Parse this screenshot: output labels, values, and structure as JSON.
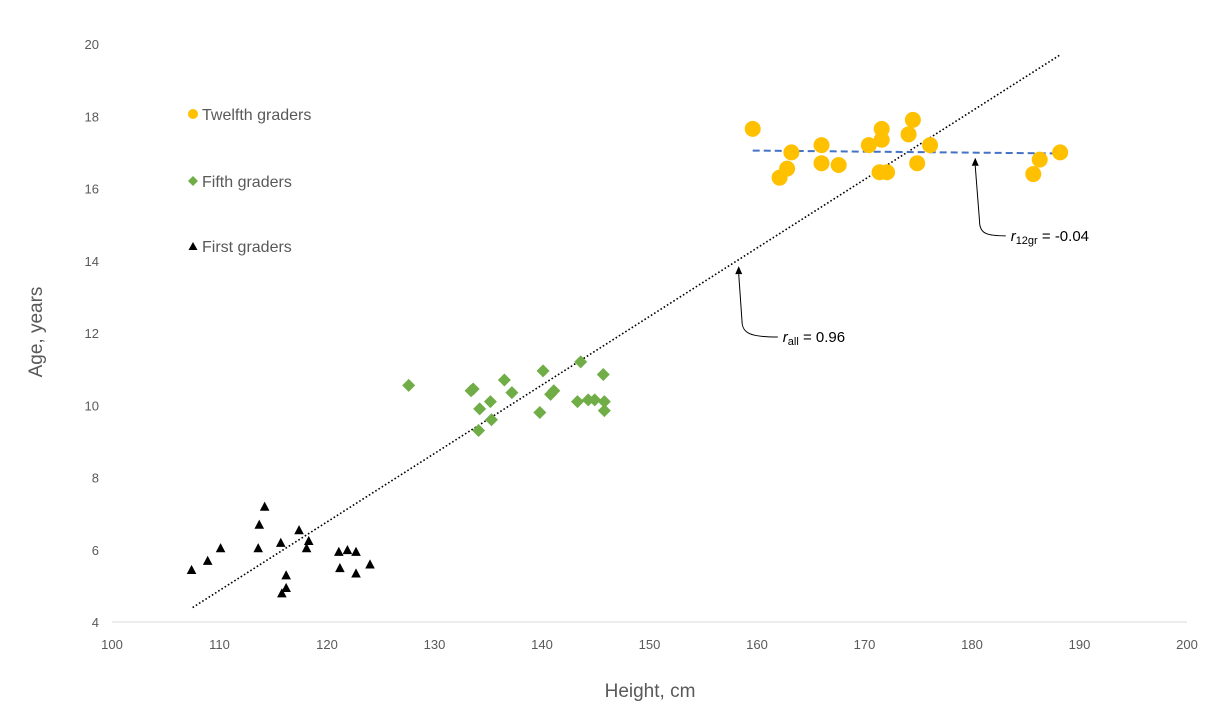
{
  "chart_data": {
    "type": "scatter",
    "title": "",
    "xlabel": "Height, cm",
    "ylabel": "Age, years",
    "xlim": [
      100,
      200
    ],
    "ylim": [
      4,
      20
    ],
    "xticks": [
      100,
      110,
      120,
      130,
      140,
      150,
      160,
      170,
      180,
      190,
      200
    ],
    "yticks": [
      4,
      6,
      8,
      10,
      12,
      14,
      16,
      18,
      20
    ],
    "grid": false,
    "legend_position": "top-left",
    "colors": {
      "twelfth": "#FFC000",
      "fifth": "#70AD47",
      "first": "#000000",
      "overall_trend": "#000000",
      "twelfth_trend": "#4472C4",
      "axis": "#D9D9D9"
    },
    "series": [
      {
        "name": "Twelfth graders",
        "marker": "circle",
        "points": [
          [
            159.6,
            17.65
          ],
          [
            162.1,
            16.3
          ],
          [
            162.8,
            16.55
          ],
          [
            163.2,
            17.0
          ],
          [
            166.0,
            17.2
          ],
          [
            166.0,
            16.7
          ],
          [
            167.6,
            16.65
          ],
          [
            170.4,
            17.2
          ],
          [
            171.4,
            16.45
          ],
          [
            171.6,
            17.65
          ],
          [
            171.6,
            17.35
          ],
          [
            172.1,
            16.45
          ],
          [
            174.1,
            17.5
          ],
          [
            174.5,
            17.9
          ],
          [
            174.9,
            16.7
          ],
          [
            176.1,
            17.2
          ],
          [
            185.7,
            16.4
          ],
          [
            186.3,
            16.8
          ],
          [
            188.2,
            17.0
          ]
        ]
      },
      {
        "name": "Fifth graders",
        "marker": "diamond",
        "points": [
          [
            127.6,
            10.55
          ],
          [
            133.4,
            10.4
          ],
          [
            133.6,
            10.45
          ],
          [
            134.1,
            9.3
          ],
          [
            134.2,
            9.9
          ],
          [
            135.2,
            10.1
          ],
          [
            135.3,
            9.6
          ],
          [
            136.5,
            10.7
          ],
          [
            137.2,
            10.35
          ],
          [
            139.8,
            9.8
          ],
          [
            140.1,
            10.95
          ],
          [
            140.8,
            10.3
          ],
          [
            141.1,
            10.4
          ],
          [
            143.3,
            10.1
          ],
          [
            143.6,
            11.2
          ],
          [
            144.3,
            10.15
          ],
          [
            144.9,
            10.15
          ],
          [
            145.7,
            10.85
          ],
          [
            145.8,
            10.1
          ],
          [
            145.8,
            9.85
          ]
        ]
      },
      {
        "name": "First graders",
        "marker": "triangle",
        "points": [
          [
            107.4,
            5.45
          ],
          [
            108.9,
            5.7
          ],
          [
            110.1,
            6.05
          ],
          [
            113.6,
            6.05
          ],
          [
            113.7,
            6.7
          ],
          [
            114.2,
            7.2
          ],
          [
            115.7,
            6.2
          ],
          [
            115.8,
            4.8
          ],
          [
            116.2,
            5.3
          ],
          [
            116.2,
            4.95
          ],
          [
            117.4,
            6.55
          ],
          [
            118.1,
            6.05
          ],
          [
            118.3,
            6.25
          ],
          [
            121.1,
            5.95
          ],
          [
            121.2,
            5.5
          ],
          [
            121.9,
            6.0
          ],
          [
            122.7,
            5.35
          ],
          [
            122.7,
            5.95
          ],
          [
            124.0,
            5.6
          ]
        ]
      }
    ],
    "trendlines": [
      {
        "name": "overall",
        "style": "dotted",
        "x": [
          107.5,
          188.2
        ],
        "y": [
          4.4,
          19.7
        ]
      },
      {
        "name": "twelfth graders",
        "style": "dashed",
        "x": [
          159.6,
          188.2
        ],
        "y": [
          17.05,
          16.97
        ]
      }
    ],
    "annotations": [
      {
        "name": "r-all",
        "r_symbol": "r",
        "subscript": "all",
        "text": " = 0.96",
        "text_at": [
          162.4,
          11.75
        ],
        "arrow_to": [
          158.3,
          13.85
        ],
        "elbow": [
          158.6,
          11.85
        ]
      },
      {
        "name": "r-12gr",
        "r_symbol": "r",
        "subscript": "12gr",
        "text": " = -0.04",
        "text_at": [
          183.6,
          14.55
        ],
        "arrow_to": [
          180.3,
          16.85
        ],
        "elbow": [
          180.7,
          14.6
        ]
      }
    ]
  }
}
